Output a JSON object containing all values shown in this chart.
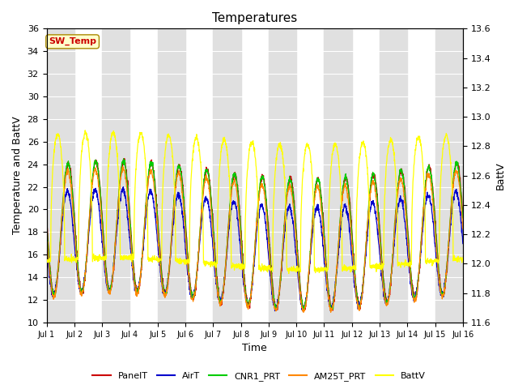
{
  "title": "Temperatures",
  "xlabel": "Time",
  "ylabel_left": "Temperature and BattV",
  "ylabel_right": "BattV",
  "ylim_left": [
    10,
    36
  ],
  "ylim_right": [
    11.6,
    13.6
  ],
  "yticks_left": [
    10,
    12,
    14,
    16,
    18,
    20,
    22,
    24,
    26,
    28,
    30,
    32,
    34,
    36
  ],
  "yticks_right": [
    11.6,
    11.8,
    12.0,
    12.2,
    12.4,
    12.6,
    12.8,
    13.0,
    13.2,
    13.4,
    13.6
  ],
  "xtick_labels": [
    "Jul 1",
    "Jul 2",
    "Jul 3",
    "Jul 4",
    "Jul 5",
    "Jul 6",
    "Jul 7",
    "Jul 8",
    "Jul 9",
    "Jul 10",
    "Jul 11",
    "Jul 12",
    "Jul 13",
    "Jul 14",
    "Jul 15",
    "Jul 16"
  ],
  "series_colors": {
    "PanelT": "#cc0000",
    "AirT": "#0000cc",
    "CNR1_PRT": "#00cc00",
    "AM25T_PRT": "#ff8800",
    "BattV": "#ffff00"
  },
  "legend_labels": [
    "PanelT",
    "AirT",
    "CNR1_PRT",
    "AM25T_PRT",
    "BattV"
  ],
  "annotation_text": "SW_Temp",
  "annotation_color": "#cc0000",
  "bg_band_color": "#e0e0e0",
  "n_days": 15,
  "pts_per_day": 144,
  "base_min": 11.5,
  "base_max": 23.0,
  "temp_amp": 11.0,
  "batt_base": 12.0,
  "batt_amp": 0.85,
  "figsize": [
    6.4,
    4.8
  ],
  "dpi": 100
}
